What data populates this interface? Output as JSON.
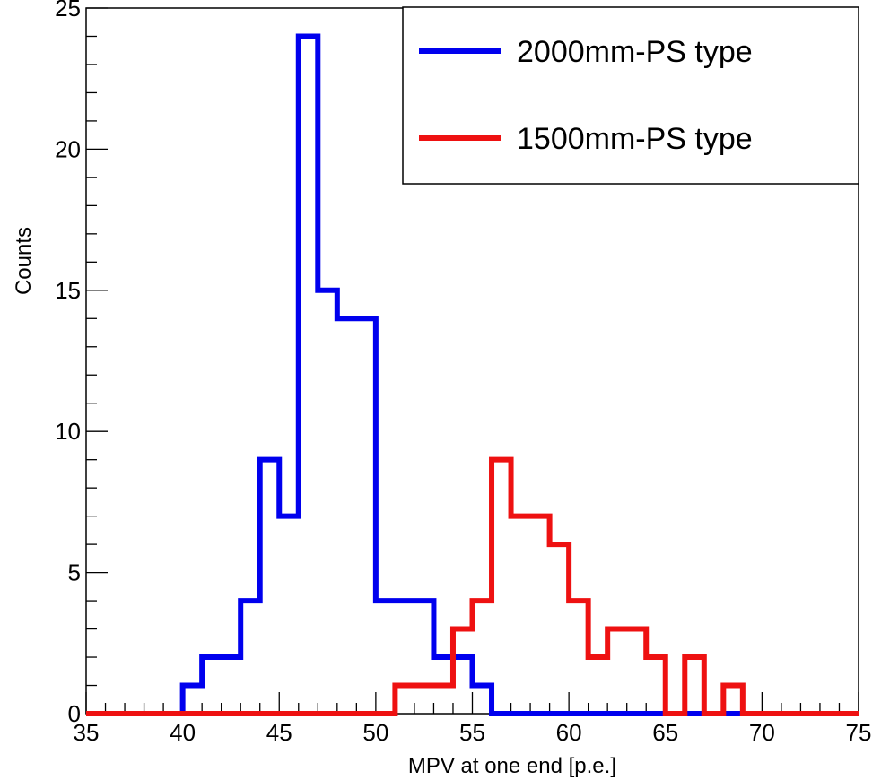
{
  "chart_data": {
    "type": "histogram",
    "xlabel": "MPV at one end [p.e.]",
    "ylabel": "Counts",
    "xlim": [
      35,
      75
    ],
    "ylim": [
      0,
      25
    ],
    "x_ticks": [
      35,
      40,
      45,
      50,
      55,
      60,
      65,
      70,
      75
    ],
    "y_ticks": [
      0,
      5,
      10,
      15,
      20,
      25
    ],
    "bin_width": 1,
    "legend_position": "top-right",
    "series": [
      {
        "name": "2000mm-PS type",
        "color": "#0000ee",
        "bin_edges_start": 35,
        "values": [
          0,
          0,
          0,
          0,
          0,
          1,
          2,
          2,
          4,
          9,
          7,
          24,
          15,
          14,
          14,
          4,
          4,
          4,
          2,
          2,
          1,
          0,
          0,
          0,
          0,
          0,
          0,
          0,
          0,
          0,
          0,
          0,
          0,
          0,
          0,
          0,
          0,
          0,
          0,
          0
        ]
      },
      {
        "name": "1500mm-PS type",
        "color": "#ee1111",
        "bin_edges_start": 35,
        "values": [
          0,
          0,
          0,
          0,
          0,
          0,
          0,
          0,
          0,
          0,
          0,
          0,
          0,
          0,
          0,
          0,
          1,
          1,
          1,
          3,
          4,
          9,
          7,
          7,
          6,
          4,
          2,
          3,
          3,
          2,
          0,
          2,
          0,
          1,
          0,
          0,
          0,
          0,
          0,
          0
        ]
      }
    ]
  }
}
